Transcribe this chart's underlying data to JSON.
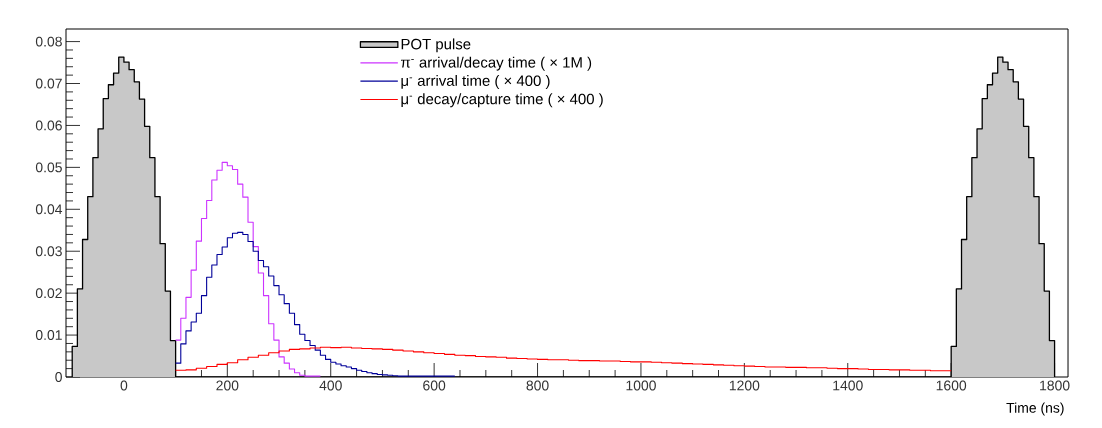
{
  "chart_data": {
    "type": "step",
    "xlabel": "Time (ns)",
    "xlim": [
      -112,
      1826
    ],
    "ylim": [
      0,
      0.083
    ],
    "xticks": [
      0,
      200,
      400,
      600,
      800,
      1000,
      1200,
      1400,
      1600,
      1800
    ],
    "yticks": [
      0,
      0.01,
      0.02,
      0.03,
      0.04,
      0.05,
      0.06,
      0.07,
      0.08
    ],
    "legend": "top",
    "grid": false,
    "series": [
      {
        "name": "POT pulse",
        "type": "area",
        "color": "#c8c8c8",
        "x": [
          -100,
          -90,
          -80,
          -70,
          -60,
          -50,
          -40,
          -30,
          -20,
          -10,
          0,
          10,
          20,
          30,
          40,
          50,
          60,
          70,
          80,
          90,
          100,
          1600,
          1610,
          1620,
          1630,
          1640,
          1650,
          1660,
          1670,
          1680,
          1690,
          1700,
          1710,
          1720,
          1730,
          1740,
          1750,
          1760,
          1770,
          1780,
          1790,
          1800
        ],
        "values": [
          0.0073,
          0.021,
          0.0328,
          0.043,
          0.0523,
          0.0592,
          0.0664,
          0.0697,
          0.0725,
          0.0763,
          0.0751,
          0.0733,
          0.0704,
          0.0663,
          0.0598,
          0.0523,
          0.043,
          0.0318,
          0.0205,
          0.0087,
          0,
          0.0073,
          0.021,
          0.0328,
          0.043,
          0.0523,
          0.0592,
          0.0664,
          0.0697,
          0.0725,
          0.0763,
          0.0751,
          0.0733,
          0.0704,
          0.0663,
          0.0598,
          0.0523,
          0.043,
          0.0318,
          0.0205,
          0.0087,
          0.0087
        ]
      },
      {
        "name": "π$^{-}$ arrival/decay time ( × 1M )",
        "color": "#cc33ff",
        "x": [
          100,
          110,
          120,
          130,
          140,
          150,
          160,
          170,
          180,
          190,
          200,
          210,
          220,
          230,
          240,
          250,
          260,
          270,
          280,
          290,
          300,
          310,
          320,
          330,
          340,
          350,
          360,
          370,
          380
        ],
        "values": [
          0.0088,
          0.014,
          0.019,
          0.0255,
          0.0324,
          0.0378,
          0.0421,
          0.047,
          0.0493,
          0.0512,
          0.0504,
          0.0495,
          0.046,
          0.0429,
          0.0369,
          0.0311,
          0.0248,
          0.0194,
          0.0127,
          0.0088,
          0.0048,
          0.0033,
          0.0019,
          0.001,
          0.0004,
          0.0002,
          0.0002,
          0.0002,
          0.0002
        ]
      },
      {
        "name": "μ$^{-}$ arrival time ( × 400 )",
        "color": "#000099",
        "x": [
          100,
          110,
          120,
          130,
          140,
          150,
          160,
          170,
          180,
          190,
          200,
          210,
          220,
          230,
          240,
          250,
          260,
          270,
          280,
          290,
          300,
          310,
          320,
          330,
          340,
          350,
          360,
          370,
          380,
          390,
          400,
          410,
          420,
          430,
          440,
          450,
          460,
          470,
          480,
          490,
          500,
          510,
          520,
          530,
          540,
          550,
          560,
          570,
          580,
          590,
          600,
          610,
          620,
          630,
          640
        ],
        "values": [
          0.0033,
          0.0079,
          0.011,
          0.0131,
          0.0152,
          0.0194,
          0.0238,
          0.0267,
          0.0292,
          0.031,
          0.0332,
          0.0343,
          0.0345,
          0.034,
          0.0323,
          0.03,
          0.0278,
          0.0263,
          0.0241,
          0.0218,
          0.0196,
          0.0175,
          0.0152,
          0.0125,
          0.0102,
          0.0087,
          0.0075,
          0.0064,
          0.0052,
          0.0042,
          0.0035,
          0.0031,
          0.0027,
          0.0024,
          0.002,
          0.0016,
          0.0013,
          0.001,
          0.0008,
          0.0006,
          0.0005,
          0.0004,
          0.0003,
          0.0002,
          0.0002,
          0.0002,
          0.0002,
          0.0002,
          0.0002,
          0.0002,
          0.0002,
          0.0002,
          0.0002,
          0.0002,
          0.0002
        ]
      },
      {
        "name": "μ$^{-}$ decay/capture time ( × 400 )",
        "color": "#ff0000",
        "x": [
          100,
          120,
          140,
          160,
          180,
          200,
          220,
          240,
          260,
          280,
          300,
          320,
          340,
          360,
          380,
          400,
          420,
          440,
          460,
          480,
          500,
          520,
          540,
          560,
          580,
          600,
          620,
          640,
          660,
          680,
          700,
          720,
          740,
          760,
          780,
          800,
          820,
          840,
          860,
          880,
          900,
          920,
          940,
          960,
          980,
          1000,
          1020,
          1040,
          1060,
          1080,
          1100,
          1120,
          1140,
          1160,
          1180,
          1200,
          1220,
          1240,
          1260,
          1280,
          1300,
          1320,
          1340,
          1360,
          1380,
          1400,
          1420,
          1440,
          1460,
          1480,
          1500,
          1520,
          1540,
          1560,
          1580,
          1600
        ],
        "values": [
          0.0016,
          0.0017,
          0.0021,
          0.0025,
          0.003,
          0.0034,
          0.0041,
          0.0047,
          0.0052,
          0.0058,
          0.0062,
          0.0066,
          0.0067,
          0.0069,
          0.0071,
          0.007,
          0.0071,
          0.0069,
          0.0068,
          0.0067,
          0.0066,
          0.0064,
          0.0062,
          0.006,
          0.0058,
          0.0056,
          0.0054,
          0.0052,
          0.0051,
          0.0049,
          0.0048,
          0.0047,
          0.0045,
          0.0044,
          0.0043,
          0.0042,
          0.0041,
          0.0041,
          0.004,
          0.0039,
          0.0039,
          0.0038,
          0.0038,
          0.0037,
          0.0036,
          0.0036,
          0.0035,
          0.0034,
          0.0033,
          0.0032,
          0.0031,
          0.003,
          0.0029,
          0.0028,
          0.0027,
          0.0026,
          0.0025,
          0.0024,
          0.0024,
          0.0023,
          0.0023,
          0.0022,
          0.0022,
          0.0021,
          0.002,
          0.002,
          0.0019,
          0.0018,
          0.0018,
          0.0017,
          0.0017,
          0.0016,
          0.0016,
          0.0015,
          0.0015,
          0.0015
        ]
      }
    ]
  }
}
